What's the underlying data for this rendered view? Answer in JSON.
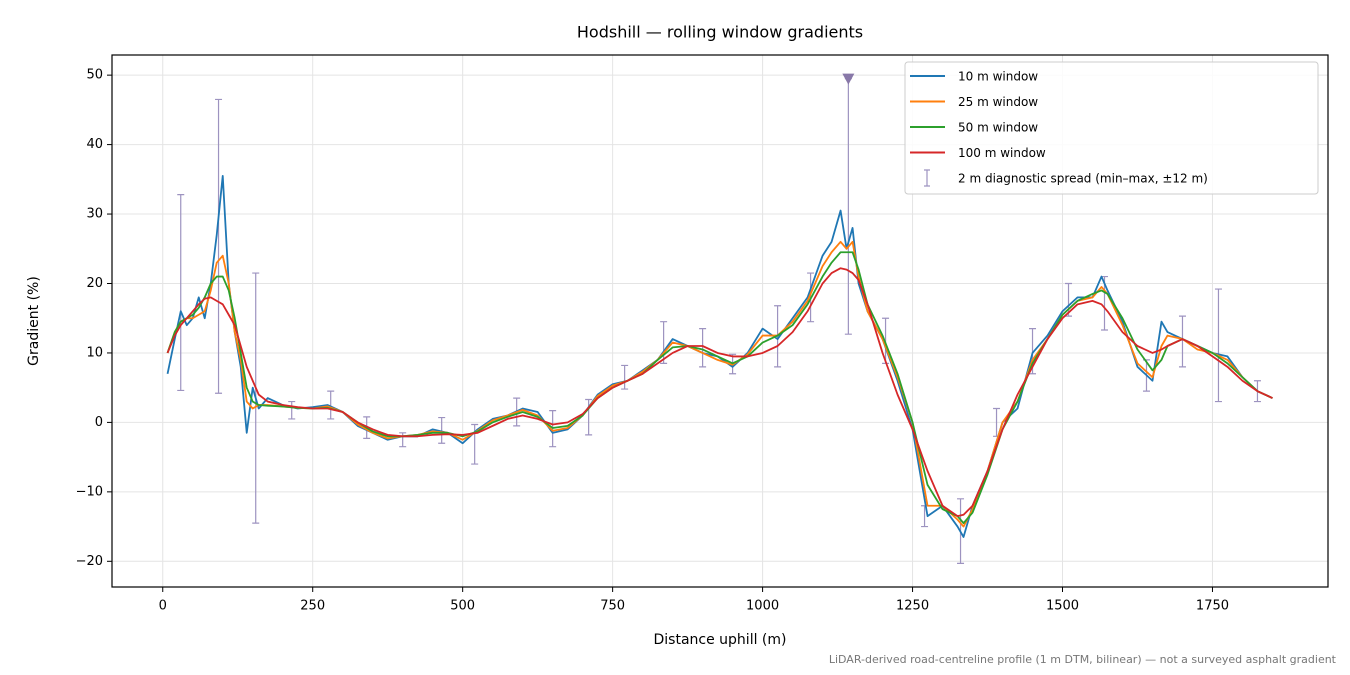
{
  "chart_data": {
    "type": "line",
    "title": "Hodshill — rolling window gradients",
    "xlabel": "Distance uphill (m)",
    "ylabel": "Gradient (%)",
    "footnote": "LiDAR-derived road-centreline profile (1 m DTM, bilinear) — not a surveyed asphalt gradient",
    "xlim": [
      -84.6,
      1942.6
    ],
    "ylim": [
      -23.7,
      52.9
    ],
    "xticks": [
      0,
      250,
      500,
      750,
      1000,
      1250,
      1500,
      1750
    ],
    "yticks": [
      {
        "value": -20,
        "label": "−20"
      },
      {
        "value": -10,
        "label": "−10"
      },
      0,
      10,
      20,
      30,
      40,
      50
    ],
    "grid": true,
    "legend": "upper right",
    "x": [
      8,
      20,
      30,
      40,
      50,
      60,
      70,
      80,
      90,
      100,
      110,
      120,
      130,
      140,
      150,
      160,
      175,
      200,
      225,
      250,
      275,
      300,
      325,
      350,
      375,
      400,
      425,
      450,
      475,
      500,
      525,
      550,
      575,
      600,
      625,
      650,
      675,
      700,
      725,
      750,
      775,
      800,
      825,
      850,
      875,
      900,
      925,
      950,
      975,
      1000,
      1025,
      1050,
      1075,
      1100,
      1115,
      1130,
      1140,
      1150,
      1160,
      1175,
      1200,
      1225,
      1250,
      1275,
      1300,
      1325,
      1335,
      1350,
      1375,
      1400,
      1425,
      1450,
      1475,
      1500,
      1525,
      1550,
      1565,
      1575,
      1600,
      1625,
      1650,
      1665,
      1675,
      1700,
      1725,
      1750,
      1775,
      1800,
      1825,
      1850
    ],
    "series": [
      {
        "name": "10 m window",
        "color": "#1f77b4",
        "values": [
          7,
          12,
          16,
          14,
          15,
          18,
          15,
          20,
          27,
          35.5,
          20,
          13,
          8,
          -1.5,
          5,
          2,
          3.5,
          2.5,
          2,
          2.2,
          2.5,
          1.5,
          -0.5,
          -1.5,
          -2.5,
          -2,
          -2,
          -1,
          -1.5,
          -3,
          -1,
          0.5,
          1,
          2,
          1.5,
          -1.5,
          -1,
          1,
          4,
          5.5,
          6,
          7.5,
          9,
          12,
          11,
          10,
          9.5,
          8,
          10,
          13.5,
          12,
          15,
          18,
          24,
          26,
          30.5,
          25,
          28,
          20,
          16,
          12,
          6,
          -1,
          -13.5,
          -12,
          -15,
          -16.5,
          -12,
          -7,
          0,
          2,
          10,
          12.5,
          16,
          18,
          18,
          21,
          19,
          14.5,
          8,
          6,
          14.5,
          13,
          12,
          11,
          10,
          9.5,
          6.5,
          4.5,
          3.5
        ]
      },
      {
        "name": "25 m window",
        "color": "#ff7f0e",
        "values": [
          10,
          13,
          14.5,
          15,
          15,
          15.5,
          16,
          19,
          23,
          24,
          20,
          13,
          9,
          3,
          2,
          2.5,
          2.5,
          2.3,
          2.1,
          2,
          2.3,
          1.5,
          -0.3,
          -1.5,
          -2.3,
          -2,
          -1.8,
          -1.3,
          -1.5,
          -2.5,
          -1.2,
          0.3,
          1,
          1.8,
          1,
          -1.2,
          -0.8,
          1,
          3.8,
          5.3,
          6,
          7.3,
          9,
          11.5,
          11,
          10,
          9,
          8.3,
          9.8,
          12.5,
          12.5,
          14.5,
          17.5,
          22.5,
          24.5,
          26,
          25,
          26,
          21,
          16,
          12,
          6.5,
          0,
          -12,
          -12,
          -14,
          -15,
          -12.5,
          -7,
          0,
          3,
          9,
          12,
          15.5,
          17.5,
          18,
          19.5,
          18.5,
          14,
          8.5,
          6.5,
          11,
          12.5,
          12,
          10.5,
          10,
          9,
          6.5,
          4.5,
          3.5
        ]
      },
      {
        "name": "50 m window",
        "color": "#2ca02c",
        "values": [
          10,
          13,
          14.5,
          15,
          15.5,
          16.5,
          18,
          20,
          21,
          21,
          19,
          15,
          10,
          5,
          3,
          2.5,
          2.4,
          2.3,
          2.1,
          2,
          2.1,
          1.5,
          0,
          -1.3,
          -2,
          -2,
          -1.8,
          -1.5,
          -1.5,
          -2,
          -1.3,
          0,
          0.8,
          1.5,
          0.8,
          -0.8,
          -0.5,
          1,
          3.5,
          5,
          6,
          7,
          9,
          10.8,
          11,
          10.5,
          9.5,
          8.5,
          9.5,
          11.5,
          12.5,
          14,
          17,
          21,
          23,
          24.5,
          24.5,
          24.5,
          22,
          17,
          12.5,
          7,
          0,
          -9,
          -12.5,
          -13.5,
          -14.5,
          -13,
          -7.5,
          -1,
          3,
          8.5,
          12,
          15.5,
          17.5,
          18.5,
          19,
          18.5,
          15,
          10.5,
          7.5,
          9,
          11,
          12,
          11,
          10,
          8.5,
          6.5,
          4.5,
          3.5
        ]
      },
      {
        "name": "100 m window",
        "color": "#d62728",
        "values": [
          10,
          12.5,
          14,
          15,
          16,
          17,
          17.8,
          18,
          17.5,
          17,
          15.5,
          14,
          11,
          8,
          6,
          4,
          3,
          2.5,
          2.2,
          2,
          2,
          1.5,
          0,
          -1,
          -1.8,
          -2,
          -2,
          -1.8,
          -1.7,
          -1.8,
          -1.5,
          -0.5,
          0.5,
          1,
          0.5,
          -0.3,
          0,
          1.2,
          3.5,
          5,
          6,
          7,
          8.5,
          10,
          11,
          11,
          10,
          9.5,
          9.5,
          10,
          11,
          13,
          16,
          20,
          21.5,
          22.2,
          22,
          21.5,
          20.5,
          17,
          10,
          4,
          -1,
          -7,
          -12,
          -13.5,
          -13.3,
          -12,
          -7,
          -1,
          4,
          8,
          12,
          15,
          17,
          17.5,
          17,
          16,
          13,
          11,
          10,
          10.5,
          11,
          12,
          11,
          9.5,
          8,
          6,
          4.5,
          3.5
        ]
      }
    ],
    "errorbars": {
      "name": "2 m diagnostic spread (min–max, ±12 m)",
      "color": "#9d93c0",
      "x": [
        30,
        93,
        155,
        215,
        280,
        340,
        400,
        465,
        520,
        590,
        650,
        710,
        770,
        835,
        900,
        950,
        1025,
        1080,
        1143,
        1205,
        1270,
        1330,
        1390,
        1450,
        1510,
        1570,
        1640,
        1700,
        1760,
        1825
      ],
      "low": [
        4.6,
        4.2,
        -14.5,
        0.5,
        0.5,
        -2.3,
        -3.5,
        -3,
        -6,
        -0.5,
        -3.5,
        -1.8,
        4.8,
        8.5,
        8,
        7,
        8,
        14.5,
        12.7,
        8.5,
        -15,
        -20.3,
        -2,
        7,
        15.3,
        13.3,
        4.5,
        8,
        3,
        3
      ],
      "high": [
        32.8,
        46.5,
        21.5,
        3,
        4.5,
        0.8,
        -1.5,
        0.7,
        -0.3,
        3.5,
        1.7,
        3.3,
        8.2,
        14.5,
        13.5,
        9.8,
        16.8,
        21.5,
        49.5,
        15,
        -12,
        -11,
        2,
        13.5,
        20,
        21,
        9,
        15.3,
        19.2,
        6
      ]
    },
    "clipped": {
      "color": "#8878a8",
      "x": [
        1143
      ],
      "y": [
        49.5
      ]
    }
  }
}
